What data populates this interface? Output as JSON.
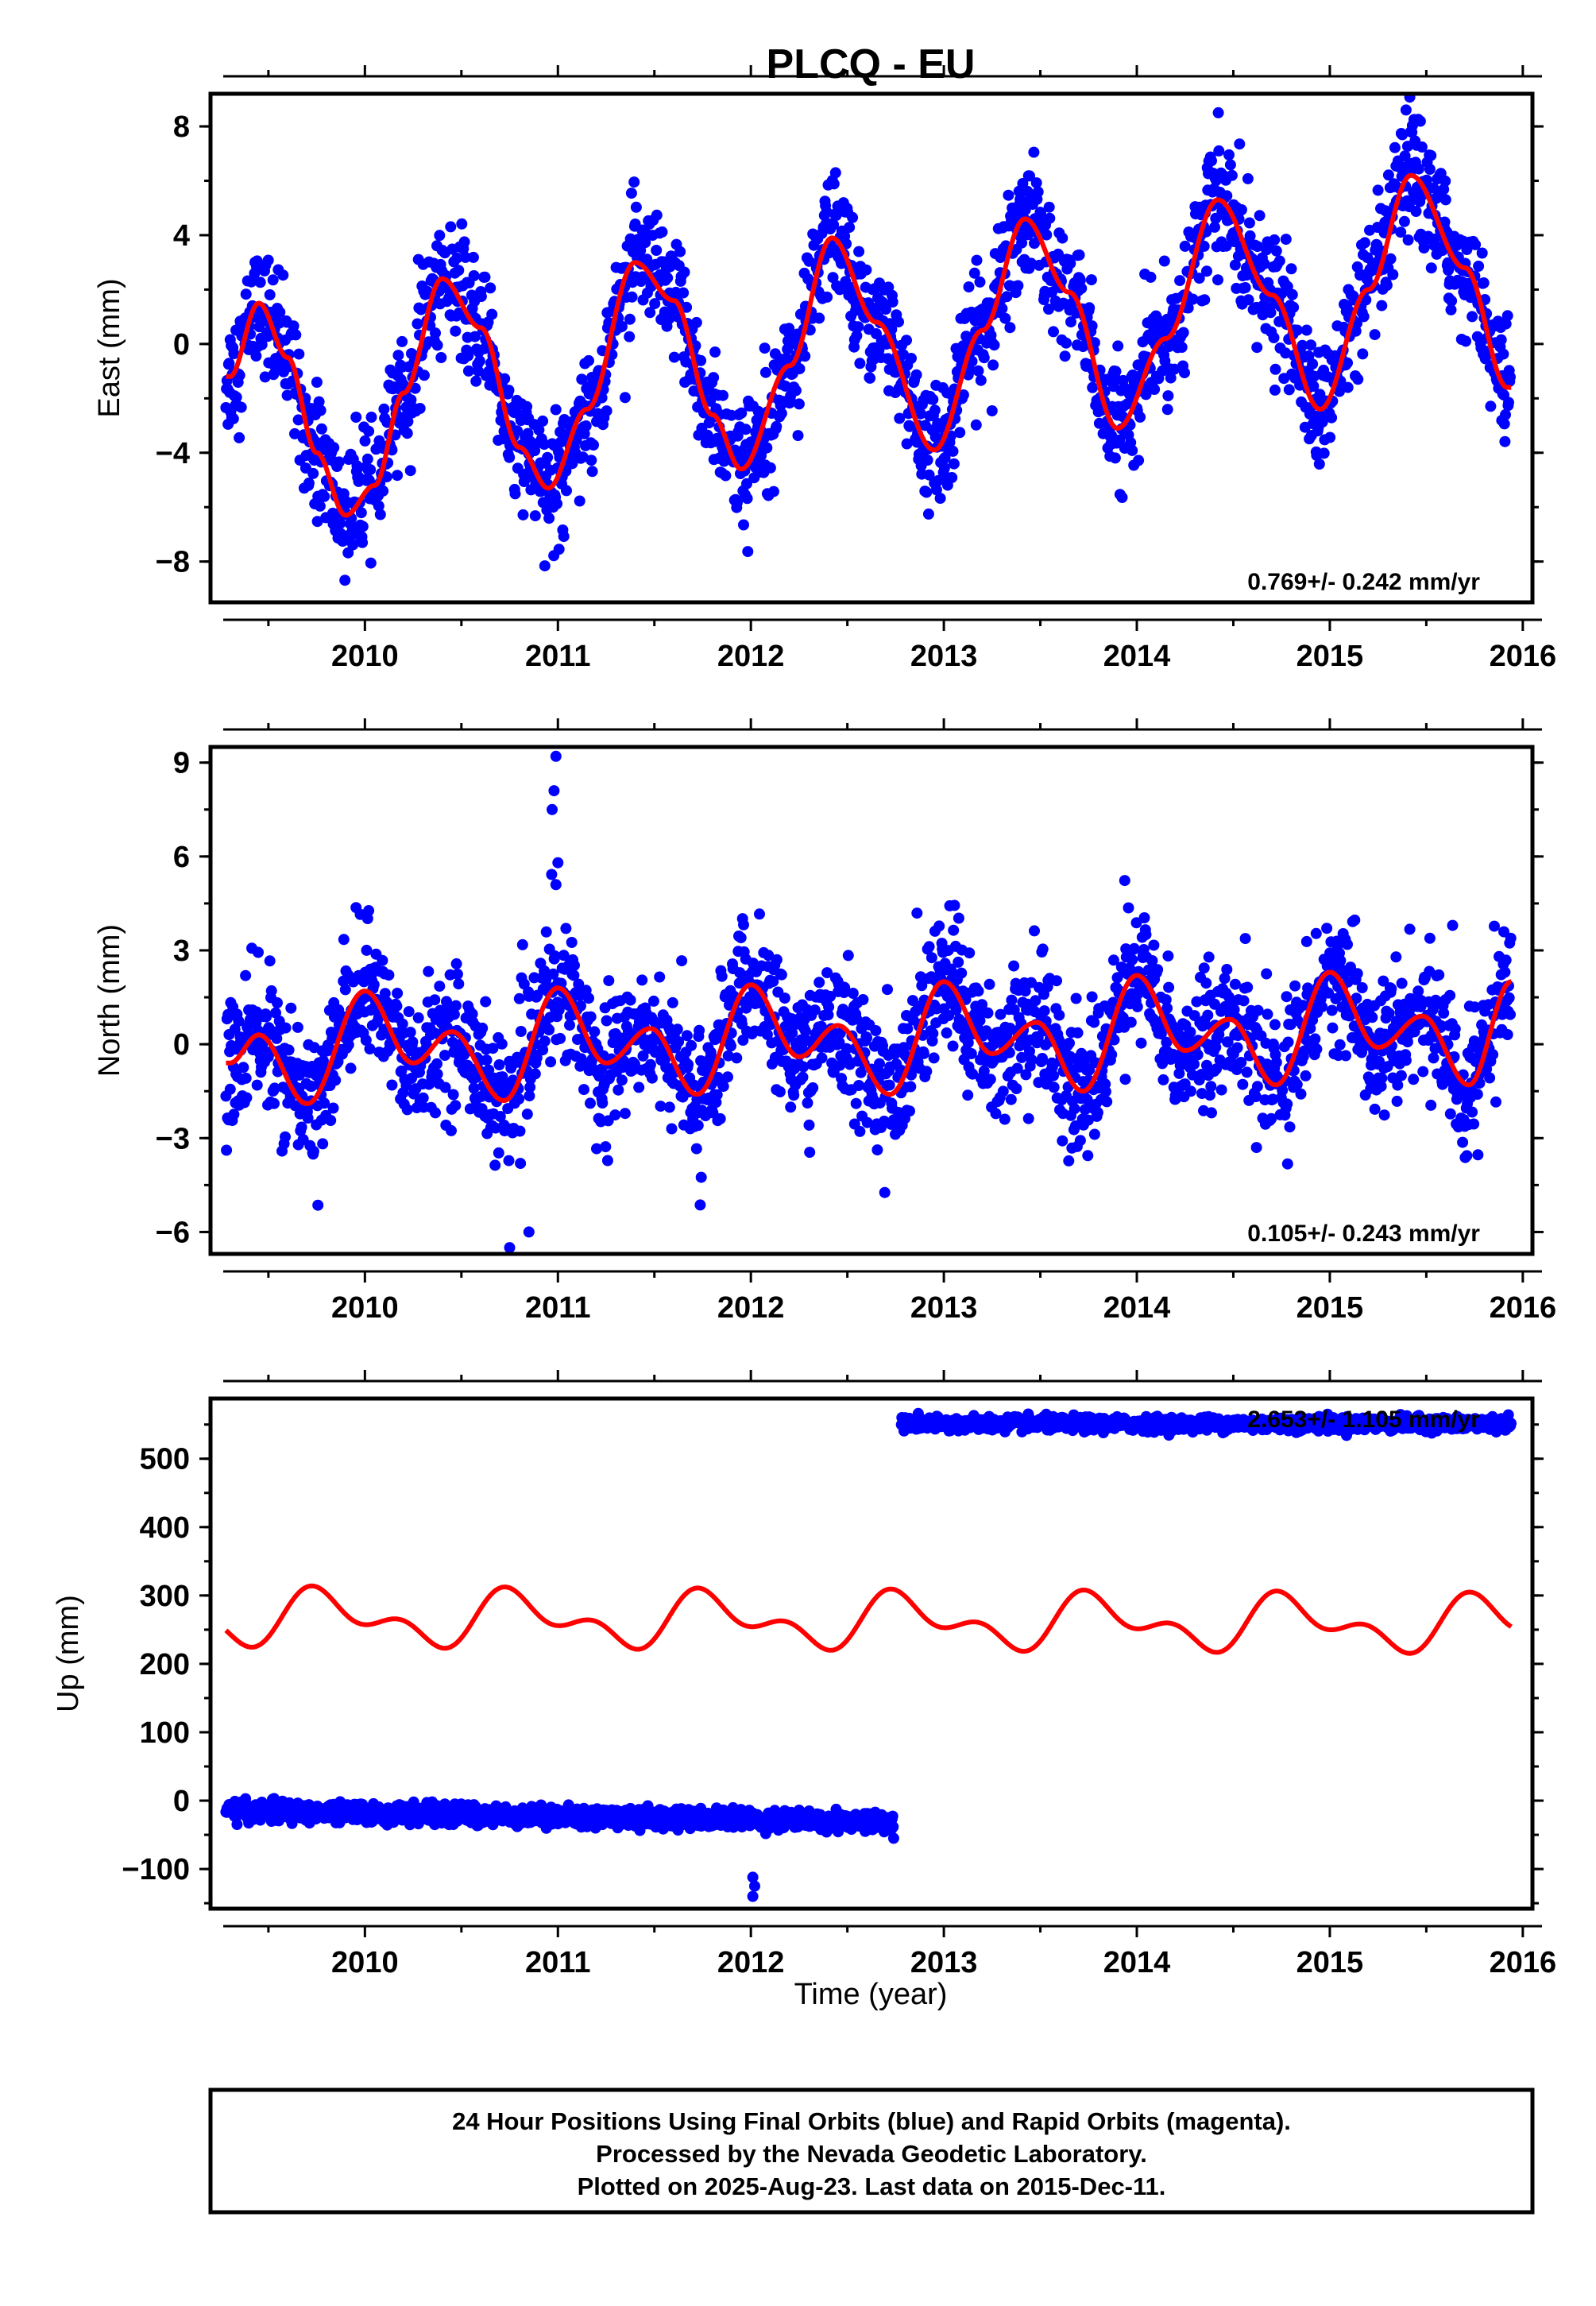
{
  "title": "PLCQ - EU",
  "colors": {
    "data": "#0000ff",
    "model": "#ff0000",
    "frame": "#000000",
    "background": "#ffffff"
  },
  "footer": {
    "line1": "24 Hour Positions Using Final Orbits (blue) and Rapid Orbits (magenta).",
    "line2": "Processed by the Nevada Geodetic Laboratory.",
    "line3": "Plotted on 2025-Aug-23. Last data on 2015-Dec-11."
  },
  "chart_data": [
    {
      "type": "scatter",
      "ylabel": "East (mm)",
      "xlim": [
        2009.2,
        2016.05
      ],
      "ylim": [
        -9.5,
        9.2
      ],
      "yticks": [
        -8,
        -4,
        0,
        4,
        8
      ],
      "xticks": [
        2010,
        2011,
        2012,
        2013,
        2014,
        2015,
        2016
      ],
      "rate_label": "0.769+/- 0.242 mm/yr",
      "data_range": [
        2009.28,
        2015.94
      ],
      "model": {
        "offset": 0.0,
        "rate": 0.769,
        "annual_amp": 4.7,
        "annual_peak": 0.42,
        "semiannual_amp": 0.0,
        "semiannual_peak": 0.0
      },
      "noise": 1.1,
      "points": [
        {
          "x": 2009.3,
          "y": -1.2
        },
        {
          "x": 2009.45,
          "y": 1.5
        },
        {
          "x": 2009.6,
          "y": -0.5
        },
        {
          "x": 2009.75,
          "y": -4.0
        },
        {
          "x": 2009.9,
          "y": -6.3
        },
        {
          "x": 2010.05,
          "y": -5.2
        },
        {
          "x": 2010.2,
          "y": -1.8
        },
        {
          "x": 2010.4,
          "y": 2.4
        },
        {
          "x": 2010.6,
          "y": 0.6
        },
        {
          "x": 2010.8,
          "y": -3.8
        },
        {
          "x": 2010.95,
          "y": -5.3
        },
        {
          "x": 2011.15,
          "y": -2.4
        },
        {
          "x": 2011.4,
          "y": 3.0
        },
        {
          "x": 2011.6,
          "y": 1.6
        },
        {
          "x": 2011.8,
          "y": -2.6
        },
        {
          "x": 2011.95,
          "y": -4.6
        },
        {
          "x": 2012.2,
          "y": -0.8
        },
        {
          "x": 2012.42,
          "y": 3.9
        },
        {
          "x": 2012.65,
          "y": 0.8
        },
        {
          "x": 2012.95,
          "y": -3.9
        },
        {
          "x": 2013.2,
          "y": 0.5
        },
        {
          "x": 2013.42,
          "y": 4.6
        },
        {
          "x": 2013.65,
          "y": 1.9
        },
        {
          "x": 2013.9,
          "y": -3.1
        },
        {
          "x": 2014.15,
          "y": 0.2
        },
        {
          "x": 2014.42,
          "y": 5.3
        },
        {
          "x": 2014.7,
          "y": 1.8
        },
        {
          "x": 2014.95,
          "y": -2.4
        },
        {
          "x": 2015.2,
          "y": 2.0
        },
        {
          "x": 2015.42,
          "y": 6.2
        },
        {
          "x": 2015.7,
          "y": 2.8
        },
        {
          "x": 2015.92,
          "y": -1.6
        }
      ]
    },
    {
      "type": "scatter",
      "ylabel": "North (mm)",
      "xlim": [
        2009.2,
        2016.05
      ],
      "ylim": [
        -6.7,
        9.5
      ],
      "yticks": [
        -6,
        -3,
        0,
        3,
        6,
        9
      ],
      "xticks": [
        2010,
        2011,
        2012,
        2013,
        2014,
        2015,
        2016
      ],
      "rate_label": "0.105+/- 0.243 mm/yr",
      "data_range": [
        2009.28,
        2015.94
      ],
      "model": {
        "offset": 0.0,
        "rate": 0.105,
        "annual_amp": 0.9,
        "annual_peak": 0.95,
        "semiannual_amp": 1.25,
        "semiannual_peak": 0.0
      },
      "noise": 1.05,
      "points": [
        {
          "x": 2009.3,
          "y": -0.6
        },
        {
          "x": 2009.45,
          "y": 0.3
        },
        {
          "x": 2009.7,
          "y": -1.9
        },
        {
          "x": 2010.0,
          "y": 1.7
        },
        {
          "x": 2010.25,
          "y": -0.6
        },
        {
          "x": 2010.45,
          "y": 0.4
        },
        {
          "x": 2010.72,
          "y": -1.8
        },
        {
          "x": 2011.0,
          "y": 1.8
        },
        {
          "x": 2011.25,
          "y": -0.6
        },
        {
          "x": 2011.48,
          "y": 0.5
        },
        {
          "x": 2011.72,
          "y": -1.6
        },
        {
          "x": 2012.0,
          "y": 1.9
        },
        {
          "x": 2012.25,
          "y": -0.4
        },
        {
          "x": 2012.45,
          "y": 0.6
        },
        {
          "x": 2012.72,
          "y": -1.6
        },
        {
          "x": 2013.0,
          "y": 2.0
        },
        {
          "x": 2013.25,
          "y": -0.3
        },
        {
          "x": 2013.48,
          "y": 0.7
        },
        {
          "x": 2013.72,
          "y": -1.5
        },
        {
          "x": 2014.0,
          "y": 2.2
        },
        {
          "x": 2014.25,
          "y": -0.2
        },
        {
          "x": 2014.48,
          "y": 0.8
        },
        {
          "x": 2014.72,
          "y": -1.3
        },
        {
          "x": 2015.0,
          "y": 2.3
        },
        {
          "x": 2015.25,
          "y": -0.1
        },
        {
          "x": 2015.48,
          "y": 0.9
        },
        {
          "x": 2015.72,
          "y": -1.3
        },
        {
          "x": 2015.94,
          "y": 2.0
        }
      ],
      "outliers": [
        {
          "x": 2010.99,
          "y": 9.2
        },
        {
          "x": 2010.98,
          "y": 8.1
        },
        {
          "x": 2010.97,
          "y": 7.5
        },
        {
          "x": 2011.0,
          "y": 5.8
        },
        {
          "x": 2010.99,
          "y": 5.1
        },
        {
          "x": 2010.75,
          "y": -6.5
        },
        {
          "x": 2010.85,
          "y": -6.0
        }
      ]
    },
    {
      "type": "scatter",
      "ylabel": "Up (mm)",
      "xlabel": "Time (year)",
      "xlim": [
        2009.2,
        2016.05
      ],
      "ylim": [
        -158,
        588
      ],
      "yticks": [
        -100,
        0,
        100,
        200,
        300,
        400,
        500
      ],
      "xticks": [
        2010,
        2011,
        2012,
        2013,
        2014,
        2015,
        2016
      ],
      "rate_label": "2.653+/- 1.105 mm/yr",
      "segments": [
        {
          "x_start": 2009.28,
          "x_end": 2012.74,
          "level": -15,
          "slope": -4.5,
          "noise": 7
        },
        {
          "x_start": 2012.78,
          "x_end": 2015.94,
          "level": 551,
          "slope": 0,
          "noise": 5
        }
      ],
      "model": {
        "offset": 262,
        "rate": 0.0,
        "annual_amp": 30,
        "annual_peak": 0.8,
        "semiannual_amp": 22,
        "semiannual_peak": 0.2,
        "trend": -1.5
      },
      "outliers": [
        {
          "x": 2012.01,
          "y": -112
        },
        {
          "x": 2012.02,
          "y": -125
        },
        {
          "x": 2012.01,
          "y": -140
        },
        {
          "x": 2012.74,
          "y": -55
        }
      ]
    }
  ]
}
